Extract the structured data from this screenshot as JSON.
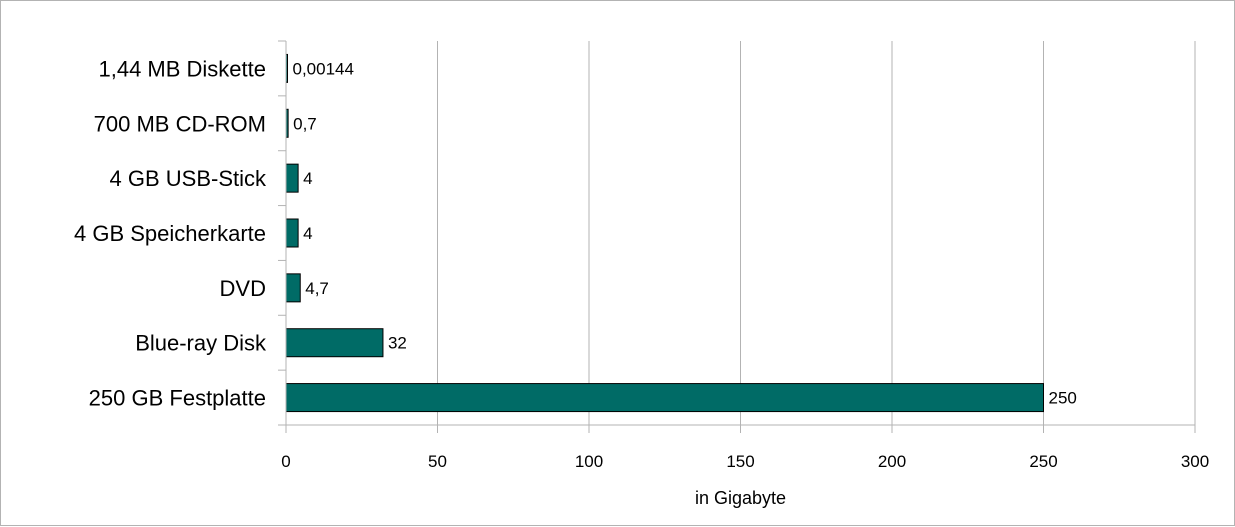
{
  "chart_data": {
    "type": "bar",
    "orientation": "horizontal",
    "categories": [
      "1,44 MB Diskette",
      "700 MB CD-ROM",
      "4 GB USB-Stick",
      "4 GB Speicherkarte",
      "DVD",
      "Blue-ray Disk",
      "250 GB Festplatte"
    ],
    "values": [
      0.00144,
      0.7,
      4,
      4,
      4.7,
      32,
      250
    ],
    "value_labels": [
      "0,00144",
      "0,7",
      "4",
      "4",
      "4,7",
      "32",
      "250"
    ],
    "title": "",
    "xlabel": "in Gigabyte",
    "ylabel": "",
    "xlim": [
      0,
      300
    ],
    "x_ticks": [
      0,
      50,
      100,
      150,
      200,
      250,
      300
    ],
    "x_tick_labels": [
      "0",
      "50",
      "100",
      "150",
      "200",
      "250",
      "300"
    ],
    "grid": "vertical",
    "legend": "none",
    "bar_color": "#006b66",
    "bar_border_color": "#000000",
    "grid_color": "#b3b3b3",
    "axis_color": "#b3b3b3"
  }
}
